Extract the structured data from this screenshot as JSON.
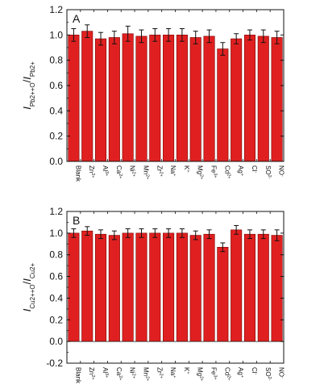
{
  "chart_data": [
    {
      "type": "bar",
      "panel_label": "A",
      "ylabel": "I_{Pb2++O}/I_{Pb2+}",
      "ylim": [
        0.0,
        1.2
      ],
      "yticks": [
        "0.0",
        "0.2",
        "0.4",
        "0.6",
        "0.8",
        "1.0",
        "1.2"
      ],
      "categories": [
        "Blank",
        "Zn2+",
        "Al3+",
        "Ca2+",
        "Ni2+",
        "Mn2+",
        "Zr2+",
        "Na+",
        "K+",
        "Mg2+",
        "Fe3+",
        "Cd2+",
        "Ag+",
        "Cl-",
        "SO42-",
        "NO3-"
      ],
      "values": [
        1.0,
        1.03,
        0.97,
        0.98,
        1.01,
        0.99,
        1.0,
        1.0,
        1.0,
        0.98,
        0.99,
        0.89,
        0.97,
        1.0,
        0.99,
        0.98
      ],
      "errors": [
        0.05,
        0.05,
        0.05,
        0.05,
        0.06,
        0.05,
        0.05,
        0.05,
        0.05,
        0.05,
        0.05,
        0.05,
        0.04,
        0.04,
        0.05,
        0.05
      ],
      "bar_color": "#e02020"
    },
    {
      "type": "bar",
      "panel_label": "B",
      "ylabel": "I_{Cu2++O}/I_{Cu2+}",
      "ylim": [
        -0.2,
        1.2
      ],
      "yticks": [
        "-0.2",
        "0.0",
        "0.2",
        "0.4",
        "0.6",
        "0.8",
        "1.0",
        "1.2"
      ],
      "categories": [
        "Blank",
        "Zn2+",
        "Al3+",
        "Ca2+",
        "Ni2+",
        "Mn2+",
        "Zr2+",
        "Na+",
        "K+",
        "Mg2+",
        "Fe3+",
        "Cd2+",
        "Ag+",
        "Cl-",
        "SO42-",
        "NO3-"
      ],
      "values": [
        1.0,
        1.02,
        0.99,
        0.98,
        1.0,
        1.0,
        1.0,
        1.0,
        1.0,
        0.98,
        0.99,
        0.87,
        1.03,
        0.99,
        0.99,
        0.98
      ],
      "errors": [
        0.04,
        0.04,
        0.04,
        0.04,
        0.04,
        0.04,
        0.04,
        0.04,
        0.04,
        0.04,
        0.04,
        0.04,
        0.04,
        0.04,
        0.04,
        0.05
      ],
      "bar_color": "#e02020"
    }
  ],
  "tick_labels_html": {
    "Blank": [
      "Blank",
      ""
    ],
    "Zn2+": [
      "Zn",
      "2+"
    ],
    "Al3+": [
      "Al",
      "3+"
    ],
    "Ca2+": [
      "Ca",
      "2+"
    ],
    "Ni2+": [
      "Ni",
      "2+"
    ],
    "Mn2+": [
      "Mn",
      "2+"
    ],
    "Zr2+": [
      "Zr",
      "2+"
    ],
    "Na+": [
      "Na",
      "+"
    ],
    "K+": [
      "K",
      "+"
    ],
    "Mg2+": [
      "Mg",
      "2+"
    ],
    "Fe3+": [
      "Fe",
      "3+"
    ],
    "Cd2+": [
      "Cd",
      "2+"
    ],
    "Ag+": [
      "Ag",
      "+"
    ],
    "Cl-": [
      "Cl",
      "-"
    ],
    "SO42-": [
      "SO",
      "2-"
    ],
    "NO3-": [
      "NO",
      "-"
    ]
  }
}
